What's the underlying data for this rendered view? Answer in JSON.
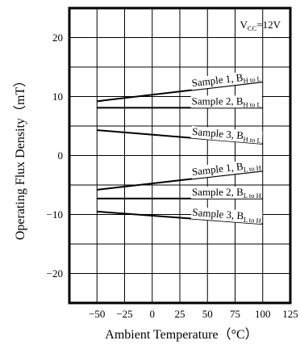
{
  "chart_data": {
    "type": "line",
    "xlabel": "Ambient Temperature（°C）",
    "ylabel": "Operating Flux Density（mT）",
    "xlim": [
      -75,
      125
    ],
    "ylim": [
      -25,
      25
    ],
    "x_ticks": [
      -50,
      -25,
      0,
      25,
      50,
      75,
      100,
      125
    ],
    "y_ticks": [
      -20,
      -10,
      0,
      10,
      20
    ],
    "x_tick_labels": [
      "−50",
      "−25",
      "0",
      "25",
      "50",
      "75",
      "100",
      "125"
    ],
    "y_tick_labels": [
      "−20",
      "−10",
      "0",
      "10",
      "20"
    ],
    "grid": true,
    "annotation": {
      "main": "V",
      "sub": "CC",
      "tail": "=12V"
    },
    "series": [
      {
        "x": [
          -50,
          100
        ],
        "values": [
          9.2,
          12.5
        ],
        "name_main": "Sample 1, B",
        "name_sub": "H to L"
      },
      {
        "x": [
          -50,
          100
        ],
        "values": [
          8.1,
          8.1
        ],
        "name_main": "Sample 2, B",
        "name_sub": "H to L"
      },
      {
        "x": [
          -50,
          100
        ],
        "values": [
          4.3,
          2.0
        ],
        "name_main": "Sample 3, B",
        "name_sub": "H to L"
      },
      {
        "x": [
          -50,
          100
        ],
        "values": [
          -5.8,
          -2.6
        ],
        "name_main": "Sample 1, B",
        "name_sub": "L to H"
      },
      {
        "x": [
          -50,
          100
        ],
        "values": [
          -7.3,
          -7.3
        ],
        "name_main": "Sample 2, B",
        "name_sub": "L to H"
      },
      {
        "x": [
          -50,
          100
        ],
        "values": [
          -9.5,
          -11.6
        ],
        "name_main": "Sample 3, B",
        "name_sub": "L to H"
      }
    ]
  }
}
